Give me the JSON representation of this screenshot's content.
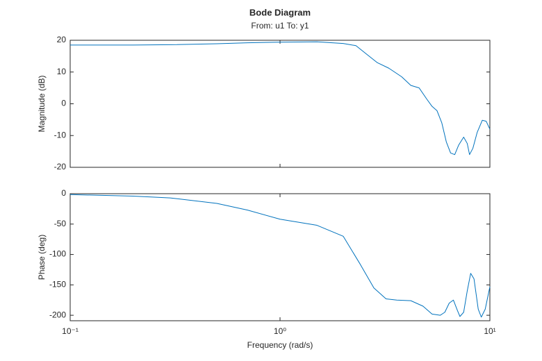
{
  "chart_data": [
    {
      "type": "line",
      "title": "Bode Diagram",
      "subtitle": "From: u1  To: y1",
      "y_label": "Magnitude (dB)",
      "xscale": "log",
      "xlim": [
        0.1,
        10
      ],
      "ylim": [
        -20,
        20
      ],
      "yticks": [
        20,
        10,
        0,
        -10,
        -20
      ],
      "grid": false,
      "x": [
        0.1,
        0.2,
        0.3,
        0.5,
        0.7,
        1,
        1.5,
        2,
        2.3,
        2.6,
        2.9,
        3.3,
        3.8,
        4.2,
        4.6,
        5.0,
        5.3,
        5.6,
        5.9,
        6.2,
        6.5,
        6.8,
        7.1,
        7.5,
        7.8,
        8.0,
        8.3,
        8.7,
        9.2,
        9.6,
        10
      ],
      "series": [
        {
          "color": "#0072bd",
          "values": [
            18.5,
            18.5,
            18.6,
            18.9,
            19.2,
            19.4,
            19.5,
            19.0,
            18.3,
            15.5,
            13.0,
            11.2,
            8.5,
            5.8,
            5.0,
            1.5,
            -0.8,
            -2.2,
            -6,
            -12,
            -15.5,
            -16,
            -13,
            -10.5,
            -12.5,
            -16,
            -14,
            -9,
            -5.2,
            -5.5,
            -8
          ]
        }
      ]
    },
    {
      "type": "line",
      "x_label": "Frequency (rad/s)",
      "y_label": "Phase (deg)",
      "xscale": "log",
      "xlim": [
        0.1,
        10
      ],
      "ylim": [
        -209,
        0
      ],
      "xticks": [
        {
          "value": 0.1,
          "label": "10⁻¹"
        },
        {
          "value": 1,
          "label": "10⁰"
        },
        {
          "value": 10,
          "label": "10¹"
        }
      ],
      "yticks": [
        0,
        -50,
        -100,
        -150,
        -200
      ],
      "grid": false,
      "x": [
        0.1,
        0.2,
        0.3,
        0.5,
        0.7,
        1,
        1.5,
        2,
        2.4,
        2.8,
        3.2,
        3.6,
        4.2,
        4.8,
        5.3,
        5.8,
        6.1,
        6.4,
        6.7,
        7.0,
        7.2,
        7.5,
        7.8,
        8.1,
        8.4,
        8.8,
        9.1,
        9.5,
        10
      ],
      "series": [
        {
          "color": "#0072bd",
          "values": [
            -1.5,
            -4,
            -7,
            -16,
            -27,
            -42,
            -52,
            -70,
            -115,
            -155,
            -173,
            -175,
            -176,
            -185,
            -198,
            -200,
            -195,
            -180,
            -175,
            -192,
            -202,
            -195,
            -160,
            -131,
            -140,
            -190,
            -203,
            -190,
            -153
          ]
        }
      ]
    }
  ]
}
